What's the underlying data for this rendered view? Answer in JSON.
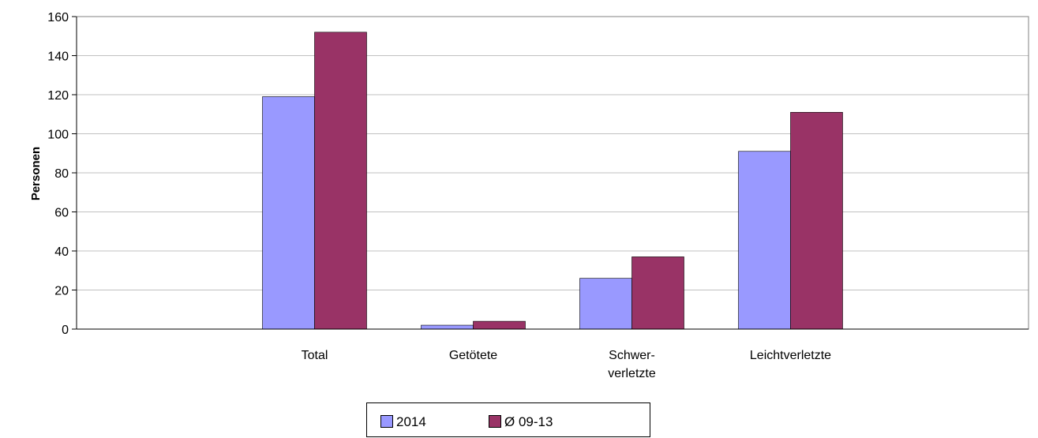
{
  "chart_data": {
    "type": "bar",
    "categories": [
      "Total",
      "Getötete",
      "Schwer-\nverletzte",
      "Leichtverletzte"
    ],
    "series": [
      {
        "name": "2014",
        "values": [
          119,
          2,
          26,
          91
        ],
        "color": "#9999ff"
      },
      {
        "name": "Ø 09-13",
        "values": [
          152,
          4,
          37,
          111
        ],
        "color": "#993366"
      }
    ],
    "ylabel": "Personen",
    "xlabel": "",
    "ylim": [
      0,
      160
    ],
    "yticks": [
      0,
      20,
      40,
      60,
      80,
      100,
      120,
      140,
      160
    ],
    "grid": true,
    "legend": "bottom"
  }
}
